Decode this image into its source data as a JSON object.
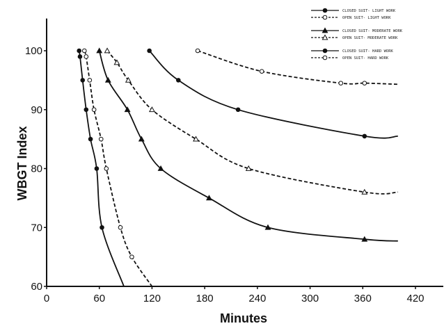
{
  "chart_data": {
    "type": "line",
    "xlabel": "Minutes",
    "ylabel": "WBGT Index",
    "xlim": [
      0,
      420
    ],
    "ylim": [
      60,
      105
    ],
    "xticks": [
      0,
      60,
      120,
      180,
      240,
      300,
      360,
      420
    ],
    "yticks": [
      60,
      70,
      80,
      90,
      100
    ],
    "grid": false,
    "legend_position": "top-right",
    "series": [
      {
        "name": "CLOSED SUIT- LIGHT WORK",
        "style": "solid",
        "marker": "filled-circle",
        "group": "light",
        "x": [
          117,
          150,
          218,
          362,
          400
        ],
        "y": [
          100,
          95,
          90,
          85.5,
          85.5
        ]
      },
      {
        "name": "OPEN SUIT- LIGHT WORK",
        "style": "dashed",
        "marker": "open-circle",
        "group": "light",
        "x": [
          172,
          245,
          335,
          362,
          400
        ],
        "y": [
          100,
          96.5,
          94.5,
          94.5,
          94.3
        ]
      },
      {
        "name": "CLOSED SUIT- MODERATE WORK",
        "style": "solid",
        "marker": "filled-triangle",
        "group": "moderate",
        "x": [
          60,
          70,
          92,
          108,
          130,
          185,
          252,
          362,
          400
        ],
        "y": [
          100,
          95,
          90,
          85,
          80,
          75,
          70,
          68,
          67.7
        ]
      },
      {
        "name": "OPEN SUIT- MODERATE WORK",
        "style": "dashed",
        "marker": "open-triangle",
        "group": "moderate",
        "x": [
          69,
          80,
          93,
          120,
          170,
          230,
          362,
          400
        ],
        "y": [
          100,
          98,
          95,
          90,
          85,
          80,
          76,
          76
        ]
      },
      {
        "name": "CLOSED SUIT- HARD WORK",
        "style": "solid",
        "marker": "filled-circle",
        "group": "hard",
        "x": [
          37,
          38,
          41,
          45,
          50,
          57,
          63,
          88
        ],
        "y": [
          100,
          99,
          95,
          90,
          85,
          80,
          70,
          60
        ]
      },
      {
        "name": "OPEN SUIT- HARD WORK",
        "style": "dashed",
        "marker": "open-circle",
        "group": "hard",
        "x": [
          43,
          45,
          49,
          54,
          62,
          68,
          84,
          97,
          120
        ],
        "y": [
          100,
          99,
          95,
          90,
          85,
          80,
          70,
          65,
          60
        ]
      }
    ]
  }
}
